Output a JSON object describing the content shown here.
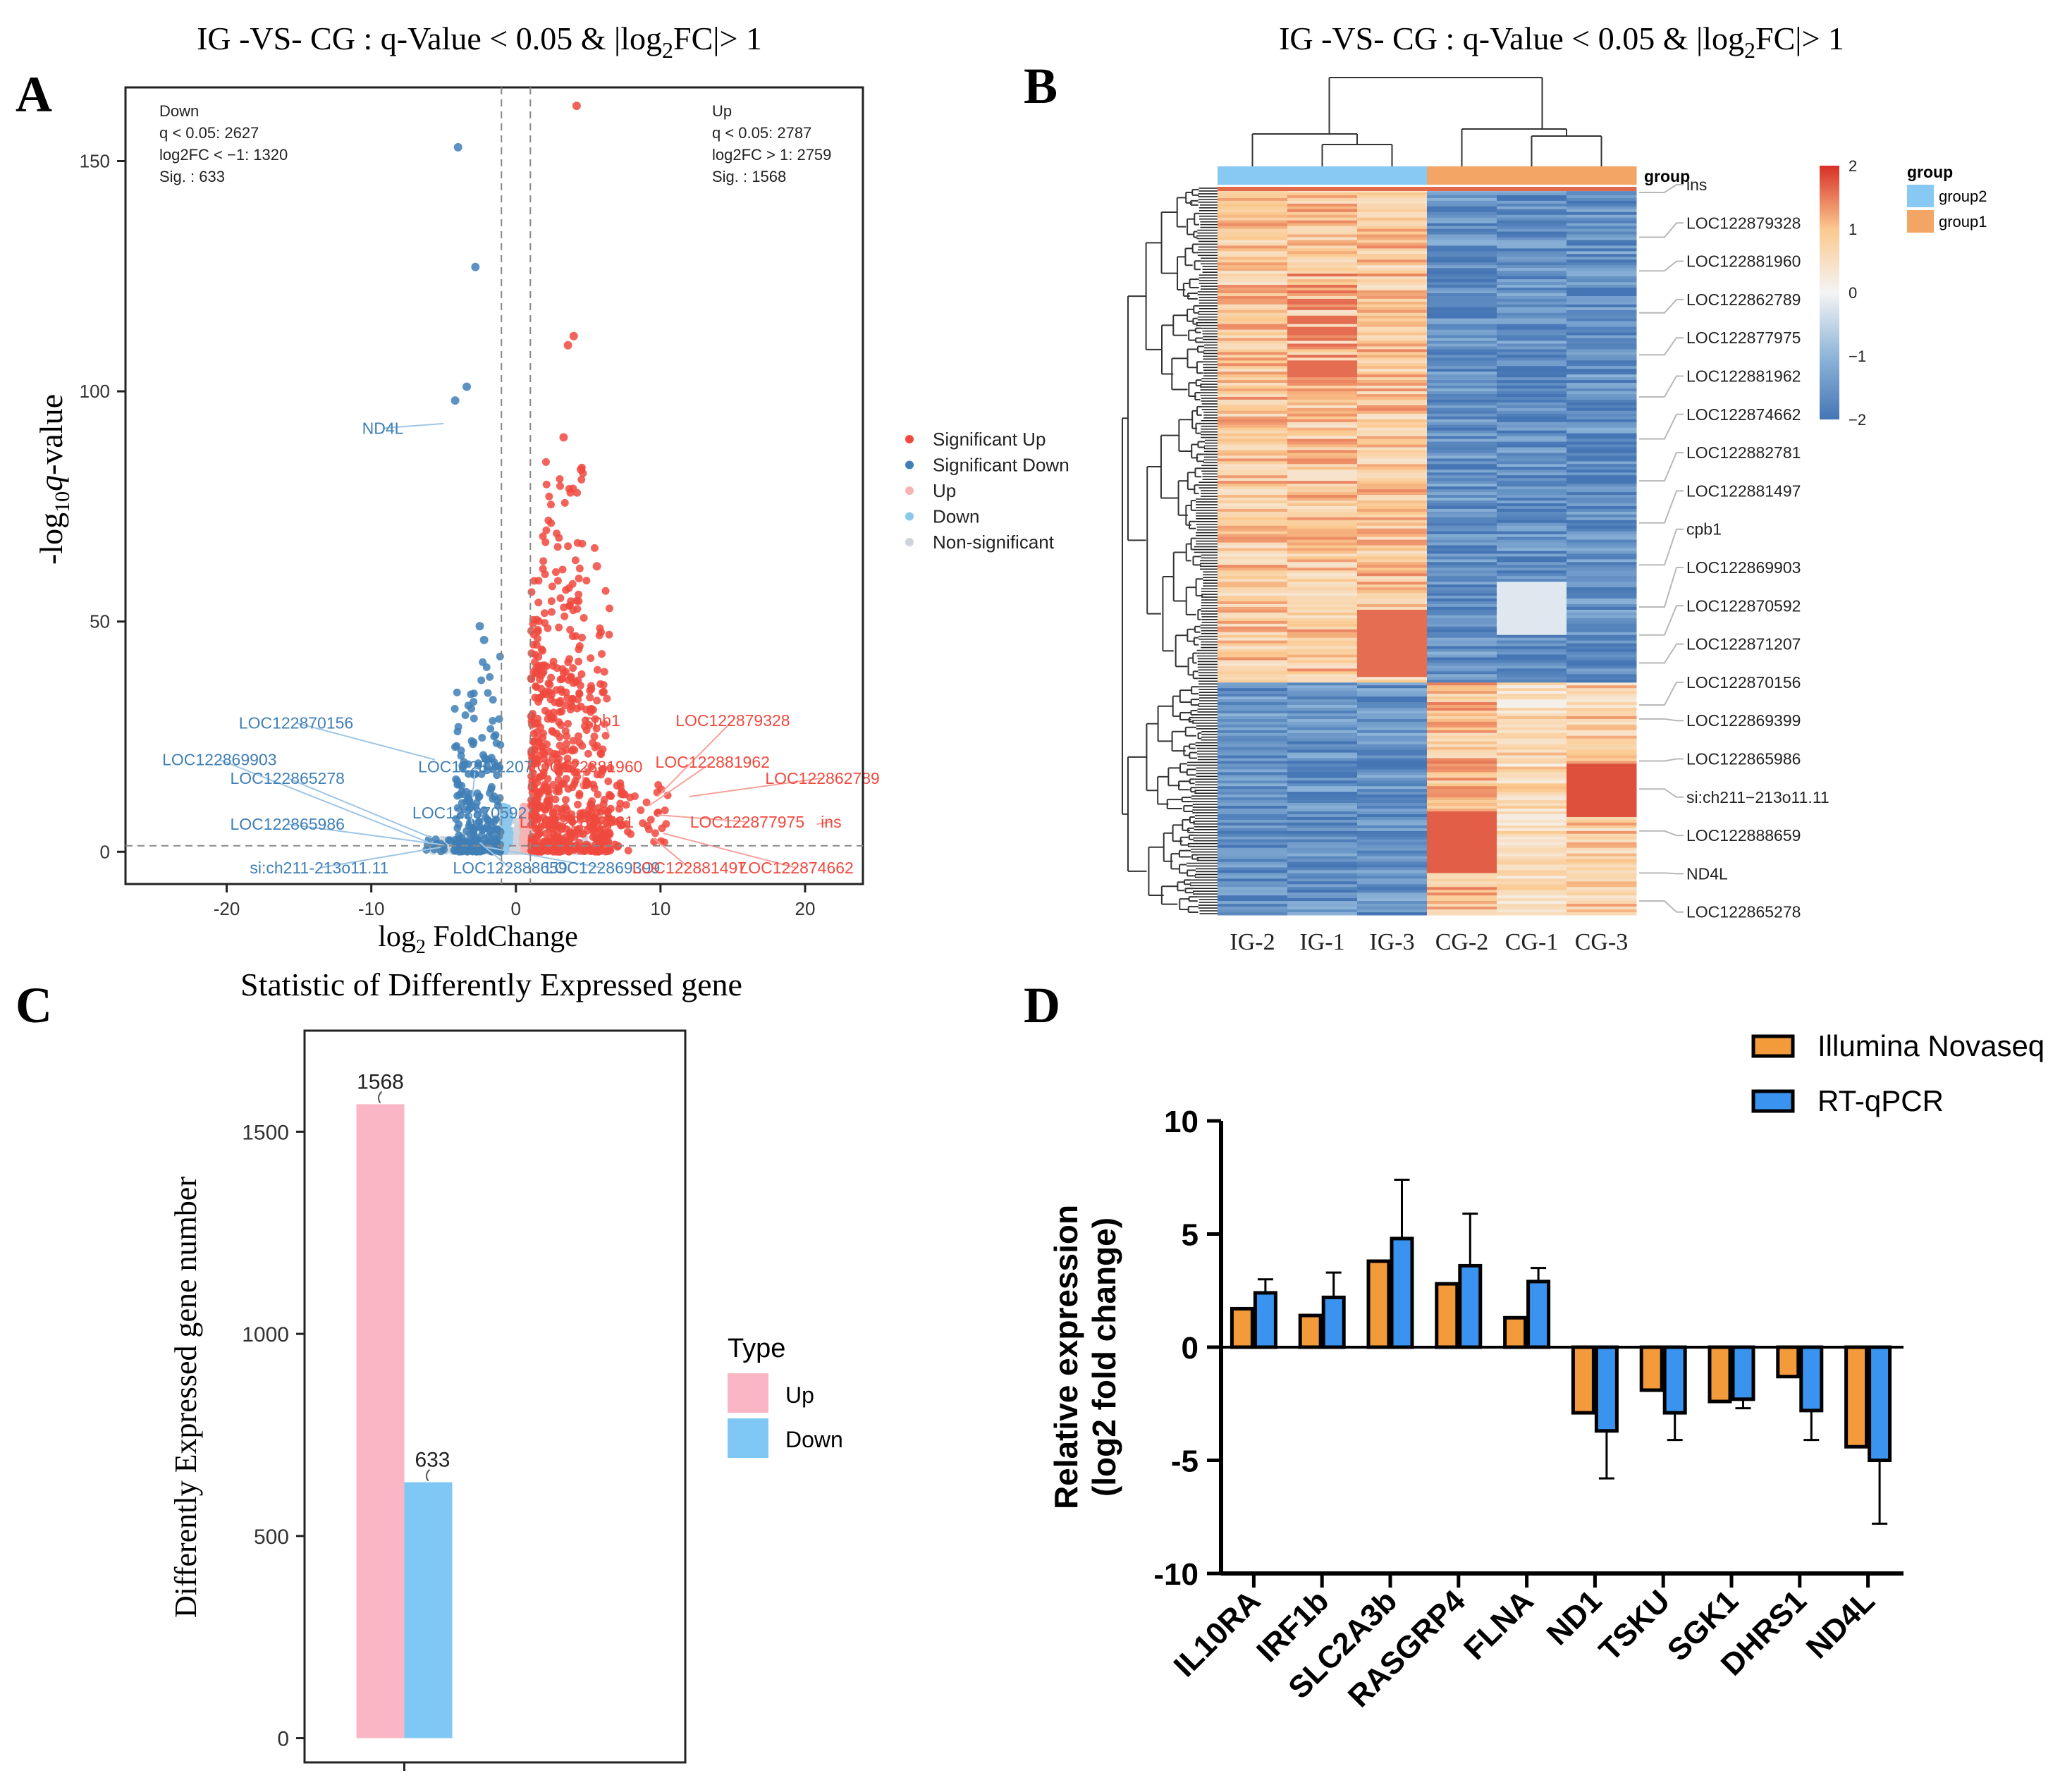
{
  "colors": {
    "sig_up": "#f0493e",
    "sig_down": "#3f7fb6",
    "up_light": "#f7b4b4",
    "down_light": "#8cc7ec",
    "nonsig": "#cfd4da",
    "bar_up": "#fab6c5",
    "bar_down": "#7fc8f5",
    "illumina": "#f39a3a",
    "rtqpcr": "#3a93ef",
    "group2": "#87c9f2",
    "group1": "#f3a565",
    "heat_high": "#d73027",
    "heat_mid": "#f4f4f4",
    "heat_low": "#4575b4"
  },
  "panels": {
    "a": "A",
    "b": "B",
    "c": "C",
    "d": "D"
  },
  "chart_data": [
    {
      "panel": "A",
      "type": "scatter",
      "title_prefix": "IG -VS- CG : q-Value < 0.05 & |log",
      "title_sub": "2",
      "title_suffix": "FC|> 1",
      "xlabel_prefix": "log",
      "xlabel_sub": "2",
      "xlabel_suffix": " FoldChange",
      "ylabel_prefix": "-log",
      "ylabel_sub": "10",
      "ylabel_italic": "q",
      "ylabel_suffix": "-value",
      "xlim": [
        -27,
        24
      ],
      "ylim": [
        -7,
        166
      ],
      "xticks": [
        -20,
        -10,
        0,
        10,
        20
      ],
      "yticks": [
        0,
        50,
        100,
        150
      ],
      "thresholds": {
        "fc": 1,
        "q_line": 1.3
      },
      "down_box": [
        "Down",
        "q < 0.05: 2627",
        "log2FC < −1: 1320",
        "Sig. : 633"
      ],
      "up_box": [
        "Up",
        "q < 0.05: 2787",
        "log2FC > 1: 2759",
        "Sig. : 1568"
      ],
      "legend": [
        {
          "label": "Significant Up",
          "class": "sig_up"
        },
        {
          "label": "Significant Down",
          "class": "sig_down"
        },
        {
          "label": "Up",
          "class": "up_light"
        },
        {
          "label": "Down",
          "class": "down_light"
        },
        {
          "label": "Non-significant",
          "class": "nonsig"
        }
      ],
      "highlighted_points": [
        {
          "x": 4.2,
          "y": 162,
          "class": "sig_up"
        },
        {
          "x": 4.0,
          "y": 112,
          "class": "sig_up"
        },
        {
          "x": 3.6,
          "y": 110,
          "class": "sig_up"
        },
        {
          "x": -4.0,
          "y": 153,
          "class": "sig_down"
        },
        {
          "x": -2.8,
          "y": 127,
          "class": "sig_down"
        },
        {
          "x": -3.4,
          "y": 101,
          "class": "sig_down"
        },
        {
          "x": -4.2,
          "y": 98,
          "class": "sig_down"
        },
        {
          "x": -2.5,
          "y": 49,
          "class": "sig_down"
        },
        {
          "x": -2.2,
          "y": 46,
          "class": "sig_down"
        },
        {
          "x": 5.6,
          "y": 62,
          "class": "sig_up"
        },
        {
          "x": 4.5,
          "y": 83,
          "class": "sig_up"
        },
        {
          "x": 3.3,
          "y": 90,
          "class": "sig_up"
        }
      ],
      "gene_labels": [
        {
          "text": "ND4L",
          "x": -5.0,
          "y": 93,
          "tx": -9.2,
          "ty": 92,
          "class": "sig_down"
        },
        {
          "text": "LOC122870156",
          "x": -5.6,
          "y": 20,
          "tx": -15.2,
          "ty": 28,
          "class": "sig_down"
        },
        {
          "text": "LOC122869903",
          "x": -6.0,
          "y": 2,
          "tx": -20.5,
          "ty": 20,
          "class": "sig_down"
        },
        {
          "text": "LOC122865278",
          "x": -5.8,
          "y": 3,
          "tx": -15.8,
          "ty": 16,
          "class": "sig_down"
        },
        {
          "text": "LOC122865986",
          "x": -5.0,
          "y": 1.5,
          "tx": -15.8,
          "ty": 6,
          "class": "sig_down"
        },
        {
          "text": "si:ch211-213o11.11",
          "x": -5.2,
          "y": 1,
          "tx": -13.6,
          "ty": -3.5,
          "class": "sig_down"
        },
        {
          "text": "LOC122871207",
          "x": -3.0,
          "y": 12,
          "tx": -2.8,
          "ty": 18.5,
          "class": "sig_down"
        },
        {
          "text": "LOC122870592",
          "x": -3.0,
          "y": 6,
          "tx": -3.2,
          "ty": 8.5,
          "class": "sig_down"
        },
        {
          "text": "LOC122888659",
          "x": -2.5,
          "y": 2,
          "tx": -0.4,
          "ty": -3.5,
          "class": "sig_down"
        },
        {
          "text": "LOC122869399",
          "x": -2.0,
          "y": 1,
          "tx": 6.0,
          "ty": -3.5,
          "class": "sig_down"
        },
        {
          "text": "cpb1",
          "x": 6.4,
          "y": 26,
          "tx": 6.0,
          "ty": 28.5,
          "class": "sig_up"
        },
        {
          "text": "LOC122879328",
          "x": 9.8,
          "y": 12,
          "tx": 15.0,
          "ty": 28.5,
          "class": "sig_up"
        },
        {
          "text": "LOC122881960",
          "x": 4.5,
          "y": 14,
          "tx": 4.8,
          "ty": 18.5,
          "class": "sig_up"
        },
        {
          "text": "LOC122881962",
          "x": 9.2,
          "y": 10,
          "tx": 13.6,
          "ty": 19.5,
          "class": "sig_up"
        },
        {
          "text": "LOC122862789",
          "x": 12.0,
          "y": 12,
          "tx": 21.2,
          "ty": 16,
          "class": "sig_up"
        },
        {
          "text": "LOC122877975",
          "x": 9.8,
          "y": 8,
          "tx": 16.0,
          "ty": 6.5,
          "class": "sig_up"
        },
        {
          "text": "ins",
          "x": 20.8,
          "y": 6,
          "tx": 21.8,
          "ty": 6.5,
          "class": "sig_up"
        },
        {
          "text": "LOC122882781",
          "x": 4.5,
          "y": 6,
          "tx": 4.2,
          "ty": 6.5,
          "class": "sig_up"
        },
        {
          "text": "LOC122881497",
          "x": 9.5,
          "y": 3,
          "tx": 12.0,
          "ty": -3.5,
          "class": "sig_up"
        },
        {
          "text": "LOC122874662",
          "x": 10.2,
          "y": 4,
          "tx": 19.4,
          "ty": -3.5,
          "class": "sig_up"
        }
      ]
    },
    {
      "panel": "B",
      "type": "heatmap",
      "title_prefix": "IG -VS- CG : q-Value < 0.05 & |log",
      "title_sub": "2",
      "title_suffix": "FC|> 1",
      "columns": [
        "IG-2",
        "IG-1",
        "IG-3",
        "CG-2",
        "CG-1",
        "CG-3"
      ],
      "column_groups": [
        "group2",
        "group2",
        "group2",
        "group1",
        "group1",
        "group1"
      ],
      "group_track_label": "group",
      "legend_title": "group",
      "legend_groups": [
        "group2",
        "group1"
      ],
      "scale_ticks": [
        "2",
        "1",
        "0",
        "−1",
        "−2"
      ],
      "scale_values": [
        2,
        1,
        0,
        -1,
        -2
      ],
      "gene_labels": [
        "ins",
        "LOC122879328",
        "LOC122881960",
        "LOC122862789",
        "LOC122877975",
        "LOC122881962",
        "LOC122874662",
        "LOC122882781",
        "LOC122881497",
        "cpb1",
        "LOC122869903",
        "LOC122870592",
        "LOC122871207",
        "LOC122870156",
        "LOC122869399",
        "LOC122865986",
        "si:ch211−213o11.11",
        "LOC122888659",
        "ND4L",
        "LOC122865278"
      ],
      "split_fraction_up": 0.68
    },
    {
      "panel": "C",
      "type": "bar",
      "title": "Statistic of Differently Expressed gene",
      "ylabel": "Differently Expressed gene number",
      "categories": [
        "Up",
        "Down"
      ],
      "values": [
        1568,
        633
      ],
      "ylim": [
        -60,
        1750
      ],
      "yticks": [
        0,
        500,
        1000,
        1500
      ],
      "legend_title": "Type",
      "legend": [
        {
          "label": "Up",
          "class": "bar_up"
        },
        {
          "label": "Down",
          "class": "bar_down"
        }
      ]
    },
    {
      "panel": "D",
      "type": "bar",
      "ylabel_line1": "Relative expression",
      "ylabel_line2": "(log2 fold change)",
      "categories": [
        "IL10RA",
        "IRF1b",
        "SLC2A3b",
        "RASGRP4",
        "FLNA",
        "ND1",
        "TSKU",
        "SGK1",
        "DHRS1",
        "ND4L"
      ],
      "ylim": [
        -10,
        10
      ],
      "yticks": [
        10,
        5,
        0,
        -5,
        -10
      ],
      "series": [
        {
          "name": "Illumina Novaseq",
          "values": [
            1.7,
            1.4,
            3.8,
            2.8,
            1.3,
            -2.9,
            -1.9,
            -2.4,
            -1.3,
            -4.4
          ]
        },
        {
          "name": "RT-qPCR",
          "values": [
            2.4,
            2.2,
            4.8,
            3.6,
            2.9,
            -3.7,
            -2.9,
            -2.3,
            -2.8,
            -5.0
          ],
          "errors": [
            0.6,
            1.1,
            2.6,
            2.3,
            0.6,
            2.1,
            1.2,
            0.4,
            1.3,
            2.8
          ]
        }
      ]
    }
  ]
}
